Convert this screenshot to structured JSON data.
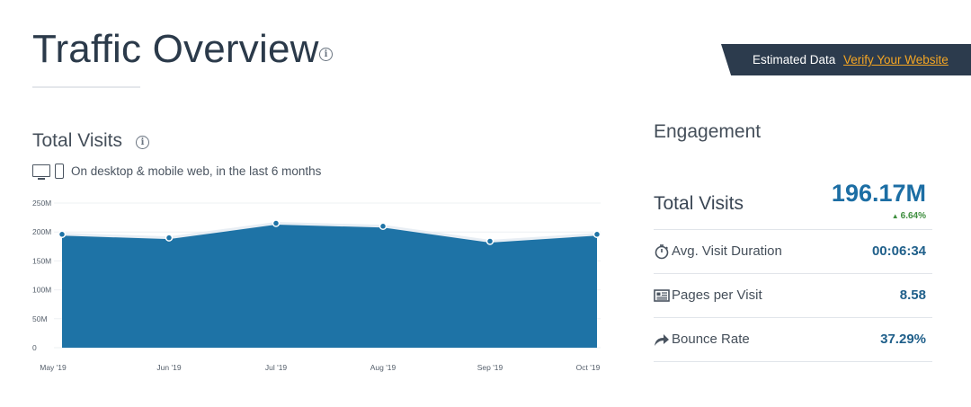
{
  "header": {
    "title": "Traffic Overview",
    "estimated_label": "Estimated Data",
    "verify_link": "Verify Your Website"
  },
  "total_visits_section": {
    "title": "Total Visits",
    "device_text": "On desktop & mobile web, in the last 6 months"
  },
  "chart_data": {
    "type": "area",
    "categories": [
      "May '19",
      "Jun '19",
      "Jul '19",
      "Aug '19",
      "Sep '19",
      "Oct '19"
    ],
    "values": [
      196,
      190,
      215,
      210,
      184,
      196
    ],
    "unit": "M",
    "ylim": [
      0,
      250
    ],
    "yticks": [
      "0",
      "50M",
      "100M",
      "150M",
      "200M",
      "250M"
    ],
    "grid": true,
    "color": "#1e73a6",
    "marker_color": "#1e73a6"
  },
  "engagement": {
    "title": "Engagement",
    "total_visits_label": "Total Visits",
    "total_visits_value": "196.17M",
    "total_visits_change": "6.64%",
    "change_color": "#3e8e3e",
    "metrics": [
      {
        "icon": "stopwatch-icon",
        "label": "Avg. Visit Duration",
        "value": "00:06:34"
      },
      {
        "icon": "pages-icon",
        "label": "Pages per Visit",
        "value": "8.58"
      },
      {
        "icon": "bounce-arrow-icon",
        "label": "Bounce Rate",
        "value": "37.29%"
      }
    ]
  },
  "colors": {
    "accent": "#1c6ea4",
    "banner_bg": "#2c3b4d",
    "link": "#f5a623"
  }
}
